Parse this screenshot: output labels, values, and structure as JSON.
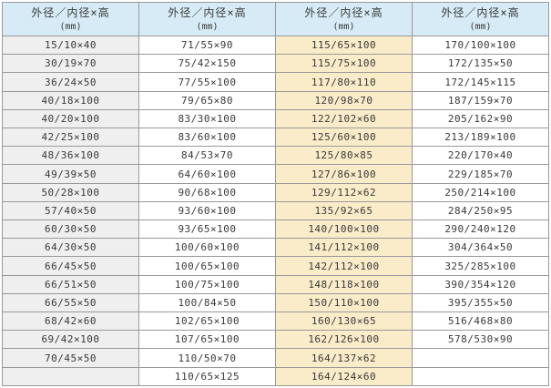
{
  "styles": {
    "header_bg": "#d6ebf5",
    "column_bgs": [
      "#efefef",
      "#ffffff",
      "#faebc9",
      "#ffffff"
    ],
    "border": "#999999",
    "outer_border": "#858585",
    "text": "#3a3a3a"
  },
  "chart_data": {
    "type": "table",
    "title": "",
    "columns": [
      {
        "header": "外径／内径×高",
        "unit": "(mm)"
      },
      {
        "header": "外径／内径×高",
        "unit": "(mm)"
      },
      {
        "header": "外径／内径×高",
        "unit": "(mm)"
      },
      {
        "header": "外径／内径×高",
        "unit": "(mm)"
      }
    ],
    "rows": [
      [
        "15/10×40",
        "71/55×90",
        "115/65×100",
        "170/100×100"
      ],
      [
        "30/19×70",
        "75/42×150",
        "115/75×100",
        "172/135×50"
      ],
      [
        "36/24×50",
        "77/55×100",
        "117/80×110",
        "172/145×115"
      ],
      [
        "40/18×100",
        "79/65×80",
        "120/98×70",
        "187/159×70"
      ],
      [
        "40/20×100",
        "83/30×100",
        "122/102×60",
        "205/162×90"
      ],
      [
        "42/25×100",
        "83/60×100",
        "125/60×100",
        "213/189×100"
      ],
      [
        "48/36×100",
        "84/53×70",
        "125/80×85",
        "220/170×40"
      ],
      [
        "49/39×50",
        "64/60×100",
        "127/86×100",
        "229/185×70"
      ],
      [
        "50/28×100",
        "90/68×100",
        "129/112×62",
        "250/214×100"
      ],
      [
        "57/40×50",
        "93/60×100",
        "135/92×65",
        "284/250×95"
      ],
      [
        "60/30×50",
        "93/65×100",
        "140/100×100",
        "290/240×120"
      ],
      [
        "64/30×50",
        "100/60×100",
        "141/112×100",
        "304/364×50"
      ],
      [
        "66/45×50",
        "100/65×100",
        "142/112×100",
        "325/285×100"
      ],
      [
        "66/51×50",
        "100/75×100",
        "148/118×100",
        "390/354×120"
      ],
      [
        "66/55×50",
        "100/84×50",
        "150/110×100",
        "395/355×50"
      ],
      [
        "68/42×60",
        "102/65×100",
        "160/130×65",
        "516/468×80"
      ],
      [
        "69/42×100",
        "107/65×100",
        "162/126×100",
        "578/530×90"
      ],
      [
        "70/45×50",
        "110/50×70",
        "164/137×62",
        ""
      ],
      [
        "",
        "110/65×125",
        "164/124×60",
        ""
      ]
    ]
  }
}
